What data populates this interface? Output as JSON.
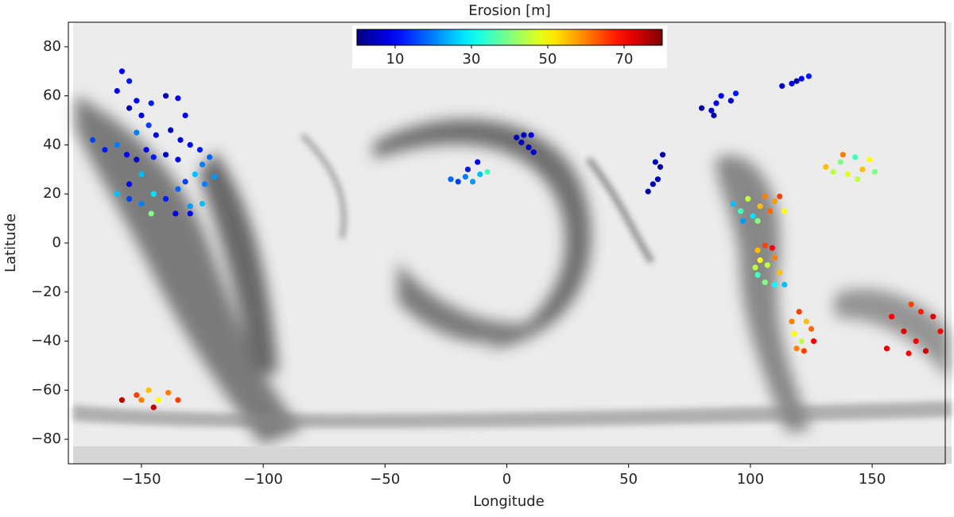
{
  "chart_data": {
    "type": "scatter",
    "x_label": "Longitude",
    "y_label": "Latitude",
    "xlim": [
      -180,
      180
    ],
    "ylim": [
      -90,
      90
    ],
    "xticks": [
      {
        "value": -150,
        "label": "−150"
      },
      {
        "value": -100,
        "label": "−100"
      },
      {
        "value": -50,
        "label": "−50"
      },
      0,
      50,
      100,
      150
    ],
    "yticks": [
      {
        "value": -80,
        "label": "−80"
      },
      {
        "value": -60,
        "label": "−60"
      },
      {
        "value": -40,
        "label": "−40"
      },
      {
        "value": -20,
        "label": "−20"
      },
      0,
      20,
      40,
      60,
      80
    ],
    "colorbar": {
      "label": "Erosion [m]",
      "lim": [
        0,
        80
      ],
      "ticks": [
        10,
        30,
        50,
        70
      ],
      "colormap": "jet"
    },
    "x": [
      -158,
      -155,
      -160,
      -152,
      -155,
      -150,
      -146,
      -140,
      -135,
      -132,
      -147,
      -152,
      -144,
      -138,
      -134,
      -130,
      -126,
      -170,
      -165,
      -160,
      -156,
      -152,
      -148,
      -145,
      -140,
      -135,
      -125,
      -122,
      -128,
      -132,
      -124,
      -120,
      -160,
      -155,
      -150,
      -145,
      -140,
      -135,
      -130,
      -136,
      -130,
      -146,
      -125,
      -150,
      -155,
      -23,
      -20,
      -17,
      -14,
      -11,
      -8,
      -12,
      -16,
      7,
      10,
      4,
      9,
      11,
      6,
      58,
      60,
      62,
      63,
      64,
      61,
      80,
      84,
      86,
      88,
      92,
      94,
      85,
      113,
      117,
      121,
      124,
      119,
      93,
      96,
      99,
      101,
      104,
      106,
      108,
      110,
      112,
      97,
      103,
      114,
      103,
      106,
      109,
      104,
      107,
      110,
      112,
      103,
      106,
      110,
      114,
      102,
      117,
      120,
      123,
      118,
      121,
      125,
      119,
      122,
      126,
      131,
      134,
      137,
      140,
      143,
      146,
      149,
      151,
      144,
      138,
      158,
      166,
      170,
      175,
      178,
      163,
      168,
      172,
      156,
      165,
      -158,
      -152,
      -147,
      -143,
      -139,
      -145,
      -135,
      -150
    ],
    "y": [
      70,
      66,
      62,
      58,
      55,
      52,
      57,
      60,
      59,
      52,
      48,
      45,
      44,
      46,
      42,
      40,
      38,
      42,
      38,
      40,
      36,
      34,
      38,
      35,
      36,
      34,
      32,
      35,
      28,
      25,
      24,
      27,
      20,
      18,
      16,
      20,
      18,
      22,
      15,
      12,
      12,
      12,
      16,
      28,
      24,
      26,
      25,
      27,
      25,
      28,
      29,
      33,
      30,
      44,
      44,
      43,
      39,
      37,
      41,
      21,
      24,
      26,
      31,
      36,
      33,
      55,
      54,
      57,
      60,
      58,
      61,
      52,
      64,
      65,
      67,
      68,
      66,
      16,
      13,
      18,
      11,
      15,
      19,
      13,
      17,
      19,
      9,
      9,
      13,
      -3,
      -1,
      -2,
      -7,
      -9,
      -6,
      -12,
      -13,
      -16,
      -17,
      -17,
      -10,
      -32,
      -28,
      -32,
      -37,
      -40,
      -35,
      -43,
      -44,
      -40,
      31,
      29,
      33,
      28,
      35,
      30,
      34,
      29,
      26,
      36,
      -30,
      -25,
      -28,
      -30,
      -36,
      -36,
      -40,
      -44,
      -43,
      -45,
      -64,
      -62,
      -60,
      -64,
      -61,
      -67,
      -64,
      -64
    ],
    "values": [
      10,
      12,
      8,
      10,
      5,
      8,
      12,
      5,
      8,
      10,
      15,
      20,
      10,
      6,
      8,
      10,
      12,
      15,
      12,
      20,
      10,
      5,
      8,
      12,
      6,
      10,
      20,
      18,
      25,
      15,
      20,
      22,
      25,
      15,
      20,
      28,
      12,
      18,
      22,
      8,
      10,
      40,
      25,
      25,
      10,
      18,
      15,
      20,
      22,
      25,
      35,
      10,
      12,
      5,
      8,
      5,
      5,
      6,
      4,
      3,
      4,
      5,
      3,
      4,
      6,
      3,
      6,
      8,
      10,
      5,
      12,
      4,
      5,
      8,
      10,
      12,
      3,
      25,
      35,
      45,
      28,
      55,
      60,
      62,
      58,
      65,
      22,
      40,
      50,
      55,
      65,
      70,
      50,
      45,
      60,
      55,
      35,
      40,
      30,
      25,
      45,
      60,
      65,
      55,
      50,
      45,
      62,
      60,
      65,
      70,
      55,
      45,
      40,
      48,
      35,
      55,
      50,
      40,
      45,
      60,
      70,
      65,
      68,
      72,
      70,
      72,
      70,
      73,
      72,
      70,
      75,
      65,
      55,
      50,
      60,
      75,
      65,
      60
    ]
  }
}
